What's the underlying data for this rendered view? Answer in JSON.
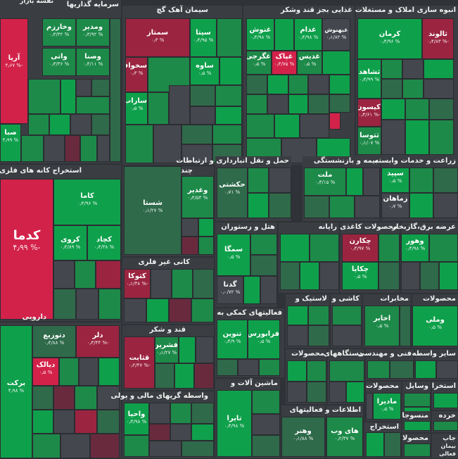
{
  "sectors": [
    {
      "name": "سرمایه گذاریها",
      "tiles": [
        {
          "n": "آریا",
          "p": "۴٫۶۷ %-"
        },
        {
          "n": "ومدیر",
          "p": "۰٫۳/۹۲ %"
        },
        {
          "n": "وخارزم",
          "p": "۰٫۳/۴۲ %"
        },
        {
          "n": "واتی",
          "p": "۰٫۳/۳۶ %"
        },
        {
          "n": "وصنا",
          "p": "۰٫۴/۱۱ %"
        },
        {
          "n": "صبا",
          "p": "۴٫۹۹ %"
        }
      ]
    },
    {
      "name": "نفسه بازار",
      "tiles": []
    },
    {
      "name": "سیمان آهک گچ",
      "tiles": [
        {
          "n": "سمتاز",
          "p": "۰٫۳ %"
        },
        {
          "n": "سیتا",
          "p": "۰٫۴/۹۵ %"
        },
        {
          "n": "سخواف",
          "p": "۰٫۳ %"
        },
        {
          "n": "ساوه",
          "p": "۰٫۵ %"
        },
        {
          "n": "ساراب",
          "p": "۰٫۵ %"
        }
      ]
    },
    {
      "name": "غذایی بجز قند وشکر",
      "tiles": [
        {
          "n": "غنوش",
          "p": "۰٫۴/۹۸ %"
        },
        {
          "n": "غدام",
          "p": "۰٫۴/۹۸ %"
        },
        {
          "n": "غبهنوش",
          "p": "۰٫۱/۸۲ %"
        },
        {
          "n": "غگرجی",
          "p": "۰٫۵ %"
        },
        {
          "n": "غپاک",
          "p": "۰٫۴/۷۵ %"
        },
        {
          "n": "غدیس",
          "p": "۰٫۵ %"
        }
      ]
    },
    {
      "name": "انبوه سازی املاک و مستغلات",
      "tiles": [
        {
          "n": "کرمان",
          "p": "۰٫۴/۹۶ %"
        },
        {
          "n": "ثالوند",
          "p": "۰٫۴/۸۳ %-"
        },
        {
          "n": "ثشاهد",
          "p": "۰٫۴/۹۹ %"
        },
        {
          "n": "کیسون",
          "p": "۰٫۴/۶۱ %-"
        },
        {
          "n": "ثتوسا",
          "p": "۰٫۱/۰۷ %"
        }
      ]
    },
    {
      "name": "استخراج کانه های فلزی",
      "tiles": [
        {
          "n": "کدما",
          "p": "۴٫۹۹ %-"
        },
        {
          "n": "کاما",
          "p": "۰٫۴/۹۶ %"
        },
        {
          "n": "کروی",
          "p": "۰٫۴/۸۹ %"
        },
        {
          "n": "کچاد",
          "p": "۰٫۴/۳۸ %"
        }
      ]
    },
    {
      "name": "چندرشته ای صنعتی",
      "tiles": [
        {
          "n": "شستا",
          "p": "۰٫۱/۲۷ %"
        },
        {
          "n": "وغدیر",
          "p": "۰٫۴/۵۳ %"
        }
      ]
    },
    {
      "name": "حمل و نقل انبارداری و ارتباطات",
      "tiles": [
        {
          "n": "حکشتی",
          "p": "۰٫۷۱ %"
        }
      ]
    },
    {
      "name": "بیمه و بازنشستگی",
      "tiles": [
        {
          "n": "ملت",
          "p": "۰٫۴/۱۵ %"
        }
      ]
    },
    {
      "name": "زراعت و خدمات وابسته",
      "tiles": [
        {
          "n": "سپید",
          "p": "۰٫۵ %"
        },
        {
          "n": "زماهان",
          "p": "۰٫۷ %"
        }
      ]
    },
    {
      "name": "هتل و رستوران",
      "tiles": [
        {
          "n": "سمگا",
          "p": "۰٫۵ %"
        },
        {
          "n": "گدنا",
          "p": "۰٫۰/۷۲ %"
        }
      ]
    },
    {
      "name": "رایانه",
      "tiles": []
    },
    {
      "name": "محصولات کاغذی",
      "tiles": [
        {
          "n": "چکارن",
          "p": "۰٫۴/۹۷ %"
        },
        {
          "n": "چکاپا",
          "p": "۰٫۵ %"
        }
      ]
    },
    {
      "name": "عرضه برق،گازبخار",
      "tiles": [
        {
          "n": "وهور",
          "p": "۰٫۴/۹۸ %"
        }
      ]
    },
    {
      "name": "کانی غیر فلزی",
      "tiles": [
        {
          "n": "کتوکا",
          "p": "۰٫۱/۳۸ %-"
        }
      ]
    },
    {
      "name": "فعالیتهای کمکی به",
      "tiles": [
        {
          "n": "تنوین",
          "p": "۰٫۴/۹ %"
        },
        {
          "n": "فرابورس",
          "p": "۰٫۵ %"
        }
      ]
    },
    {
      "name": "لاستیک و",
      "tiles": []
    },
    {
      "name": "کاشی و",
      "tiles": []
    },
    {
      "name": "مخابرات",
      "tiles": [
        {
          "n": "اخابر",
          "p": "۰٫۵ %"
        }
      ]
    },
    {
      "name": "محصولات",
      "tiles": [
        {
          "n": "وملی",
          "p": "۰٫۵ %"
        }
      ]
    },
    {
      "name": "دارویی",
      "tiles": [
        {
          "n": "دتوزیع",
          "p": "۰٫۴/۸۸ %"
        },
        {
          "n": "دلر",
          "p": "۰٫۳/۴۴ %-"
        },
        {
          "n": "دیالک",
          "p": "۰٫۵ %"
        },
        {
          "n": "برکت",
          "p": "۴٫۹۸ %"
        }
      ]
    },
    {
      "name": "قند و شکر",
      "tiles": [
        {
          "n": "فشرین",
          "p": "۰٫۱/۲۷ %"
        },
        {
          "n": "قثابت",
          "p": "۰٫۲/۴۷ %-"
        }
      ]
    },
    {
      "name": "محصولات",
      "tiles": []
    },
    {
      "name": "دستگاههای",
      "tiles": []
    },
    {
      "name": "فنی و مهندسی",
      "tiles": []
    },
    {
      "name": "سایر واسطه",
      "tiles": []
    },
    {
      "name": "واسطه گریهای مالی و پولی",
      "tiles": [
        {
          "n": "واحیا",
          "p": "۰٫۴/۹۸ %"
        }
      ]
    },
    {
      "name": "ماشین آلات و",
      "tiles": [
        {
          "n": "تایرا",
          "p": "۰٫۴/۹۸ %"
        }
      ]
    },
    {
      "name": "فعالیتهای",
      "tiles": [
        {
          "n": "وهنر",
          "p": "۰٫۱/۸۸ %"
        }
      ]
    },
    {
      "name": "اطلاعات و",
      "tiles": [
        {
          "n": "های وب",
          "p": "۰٫۲/۳۷ %"
        }
      ]
    },
    {
      "name": "محصولات",
      "tiles": [
        {
          "n": "مادیرا",
          "p": "۰٫۵ %"
        }
      ]
    },
    {
      "name": "وسایل",
      "tiles": []
    },
    {
      "name": "استخرا",
      "tiles": []
    },
    {
      "name": "خرده",
      "tiles": []
    },
    {
      "name": "منسوجا",
      "tiles": []
    },
    {
      "name": "استخراج",
      "tiles": []
    },
    {
      "name": "محصولا",
      "tiles": []
    },
    {
      "name": "جاپ",
      "tiles": []
    },
    {
      "name": "بیمان",
      "tiles": []
    },
    {
      "name": "فعالی",
      "tiles": []
    }
  ]
}
